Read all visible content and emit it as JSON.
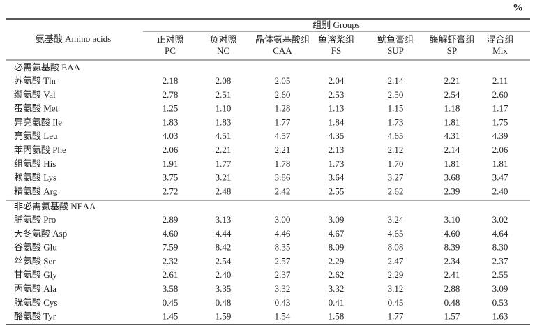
{
  "unit": "%",
  "table": {
    "group_header": "组别 Groups",
    "row_header": "氨基酸 Amino acids",
    "columns": [
      {
        "zh": "正对照",
        "en": "PC"
      },
      {
        "zh": "负对照",
        "en": "NC"
      },
      {
        "zh": "晶体氨基酸组",
        "en": "CAA"
      },
      {
        "zh": "鱼溶浆组",
        "en": "FS"
      },
      {
        "zh": "鱿鱼膏组",
        "en": "SUP"
      },
      {
        "zh": "酶解虾膏组",
        "en": "SP"
      },
      {
        "zh": "混合组",
        "en": "Mix"
      }
    ],
    "sections": [
      {
        "title": "必需氨基酸 EAA",
        "rows": [
          {
            "label": "苏氨酸 Thr",
            "values": [
              "2.18",
              "2.08",
              "2.05",
              "2.04",
              "2.14",
              "2.21",
              "2.11"
            ]
          },
          {
            "label": "缬氨酸 Val",
            "values": [
              "2.78",
              "2.51",
              "2.60",
              "2.53",
              "2.50",
              "2.54",
              "2.60"
            ]
          },
          {
            "label": "蛋氨酸 Met",
            "values": [
              "1.25",
              "1.10",
              "1.28",
              "1.13",
              "1.15",
              "1.18",
              "1.17"
            ]
          },
          {
            "label": "异亮氨酸 Ile",
            "values": [
              "1.83",
              "1.83",
              "1.77",
              "1.84",
              "1.73",
              "1.81",
              "1.75"
            ]
          },
          {
            "label": "亮氨酸 Leu",
            "values": [
              "4.03",
              "4.51",
              "4.57",
              "4.35",
              "4.65",
              "4.31",
              "4.39"
            ]
          },
          {
            "label": "苯丙氨酸 Phe",
            "values": [
              "2.06",
              "2.21",
              "2.21",
              "2.13",
              "2.12",
              "2.14",
              "2.06"
            ]
          },
          {
            "label": "组氨酸 His",
            "values": [
              "1.91",
              "1.77",
              "1.78",
              "1.73",
              "1.70",
              "1.81",
              "1.81"
            ]
          },
          {
            "label": "赖氨酸 Lys",
            "values": [
              "3.75",
              "3.21",
              "3.86",
              "3.64",
              "3.27",
              "3.68",
              "3.47"
            ]
          },
          {
            "label": "精氨酸 Arg",
            "values": [
              "2.72",
              "2.48",
              "2.42",
              "2.55",
              "2.62",
              "2.39",
              "2.40"
            ]
          }
        ]
      },
      {
        "title": "非必需氨基酸 NEAA",
        "rows": [
          {
            "label": "脯氨酸 Pro",
            "values": [
              "2.89",
              "3.13",
              "3.00",
              "3.09",
              "3.24",
              "3.10",
              "3.02"
            ]
          },
          {
            "label": "天冬氨酸 Asp",
            "values": [
              "4.60",
              "4.44",
              "4.46",
              "4.67",
              "4.65",
              "4.60",
              "4.64"
            ]
          },
          {
            "label": "谷氨酸 Glu",
            "values": [
              "7.59",
              "8.42",
              "8.35",
              "8.09",
              "8.08",
              "8.39",
              "8.30"
            ]
          },
          {
            "label": "丝氨酸 Ser",
            "values": [
              "2.32",
              "2.54",
              "2.57",
              "2.29",
              "2.47",
              "2.34",
              "2.37"
            ]
          },
          {
            "label": "甘氨酸 Gly",
            "values": [
              "2.61",
              "2.40",
              "2.37",
              "2.62",
              "2.29",
              "2.41",
              "2.55"
            ]
          },
          {
            "label": "丙氨酸 Ala",
            "values": [
              "3.58",
              "3.35",
              "3.32",
              "3.32",
              "3.12",
              "2.88",
              "3.09"
            ]
          },
          {
            "label": "胱氨酸 Cys",
            "values": [
              "0.45",
              "0.48",
              "0.43",
              "0.41",
              "0.45",
              "0.48",
              "0.53"
            ]
          },
          {
            "label": "酪氨酸 Tyr",
            "values": [
              "1.45",
              "1.59",
              "1.54",
              "1.58",
              "1.77",
              "1.57",
              "1.63"
            ]
          }
        ]
      }
    ]
  }
}
